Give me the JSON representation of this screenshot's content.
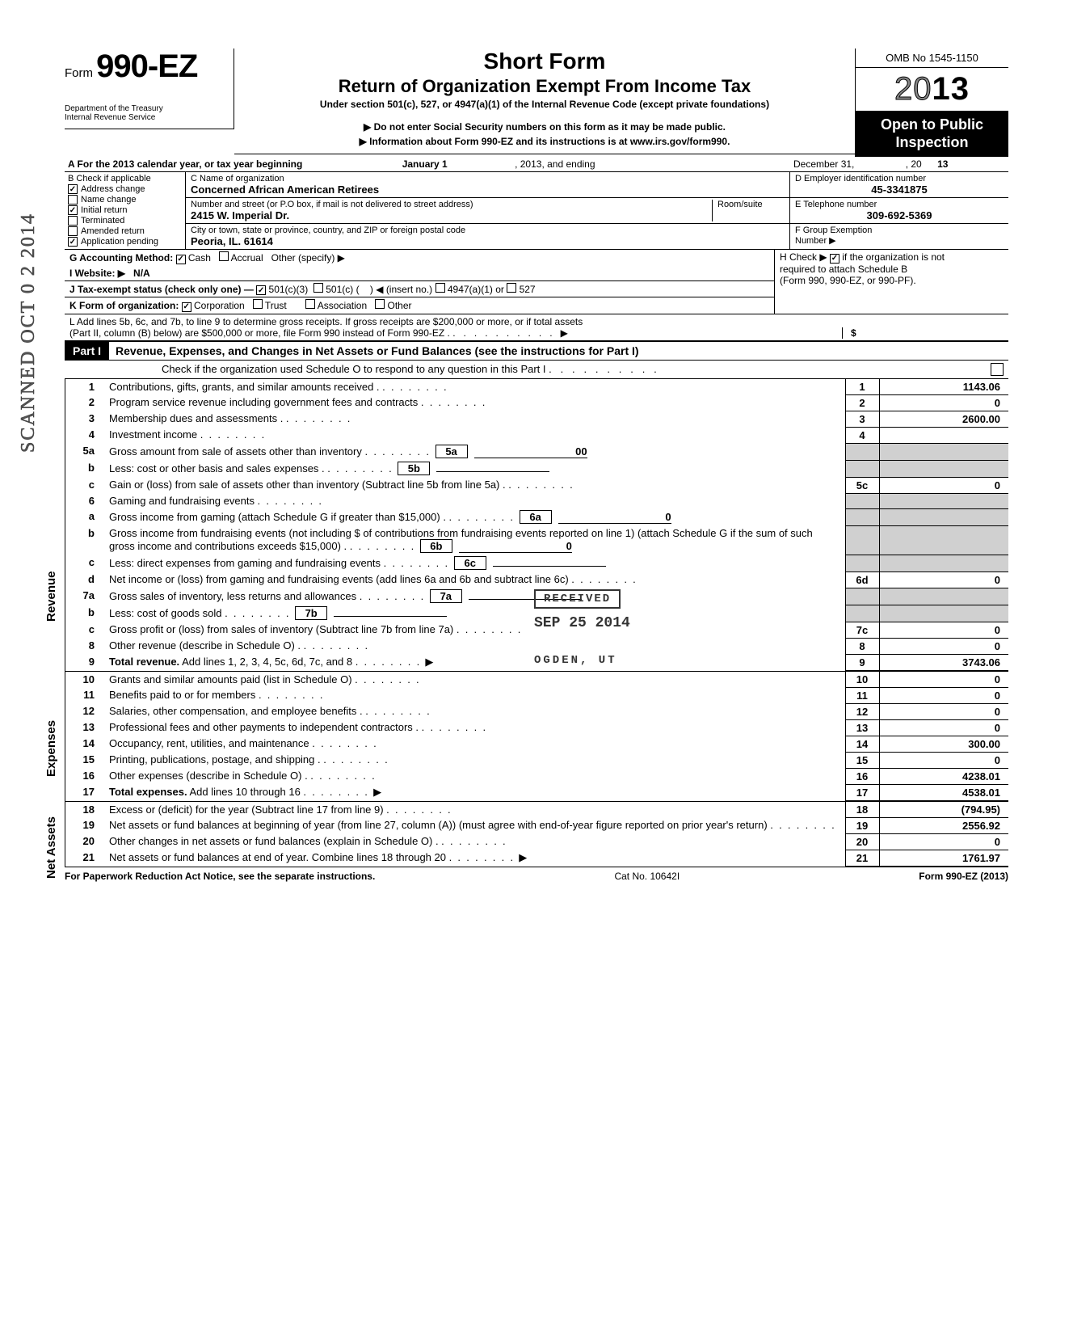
{
  "header": {
    "form_prefix": "Form",
    "form_number": "990-EZ",
    "dept1": "Department of the Treasury",
    "dept2": "Internal Revenue Service",
    "short_form": "Short Form",
    "title": "Return of Organization Exempt From Income Tax",
    "subtitle": "Under section 501(c), 527, or 4947(a)(1) of the Internal Revenue Code (except private foundations)",
    "arrow1": "▶ Do not enter Social Security numbers on this form as it may be made public.",
    "arrow2": "▶ Information about Form 990-EZ and its instructions is at www.irs.gov/form990.",
    "omb": "OMB No 1545-1150",
    "year_outline": "20",
    "year_bold": "13",
    "open1": "Open to Public",
    "open2": "Inspection"
  },
  "row_a": {
    "text_left": "A For the 2013 calendar year, or tax year beginning",
    "mid1": "January 1",
    "mid2": ", 2013, and ending",
    "right1": "December 31,",
    "right2": ", 20",
    "right3": "13"
  },
  "col_b": {
    "header": "B Check if applicable",
    "items": [
      {
        "label": "Address change",
        "checked": true
      },
      {
        "label": "Name change",
        "checked": false
      },
      {
        "label": "Initial return",
        "checked": true
      },
      {
        "label": "Terminated",
        "checked": false
      },
      {
        "label": "Amended return",
        "checked": false
      },
      {
        "label": "Application pending",
        "checked": true
      }
    ]
  },
  "org": {
    "c_label": "C Name of organization",
    "name": "Concerned African American Retirees",
    "addr_label": "Number and street (or P.O box, if mail is not delivered to street address)",
    "room_label": "Room/suite",
    "addr": "2415 W. Imperial Dr.",
    "city_label": "City or town, state or province, country, and ZIP or foreign postal code",
    "city": "Peoria, IL. 61614",
    "d_label": "D Employer identification number",
    "ein": "45-3341875",
    "e_label": "E Telephone number",
    "phone": "309-692-5369",
    "f_label": "F Group Exemption",
    "f_label2": "Number ▶"
  },
  "lines_ghijkl": {
    "g": "G  Accounting Method:",
    "g_cash": "Cash",
    "g_accrual": "Accrual",
    "g_other": "Other (specify) ▶",
    "i": "I   Website: ▶",
    "i_val": "N/A",
    "j": "J  Tax-exempt status (check only one) —",
    "j1": "501(c)(3)",
    "j2": "501(c) (",
    "j2b": ") ◀ (insert no.)",
    "j3": "4947(a)(1) or",
    "j4": "527",
    "k": "K  Form of organization:",
    "k1": "Corporation",
    "k2": "Trust",
    "k3": "Association",
    "k4": "Other",
    "l1": "L  Add lines 5b, 6c, and 7b, to line 9 to determine gross receipts. If gross receipts are $200,000 or more, or if total assets",
    "l2": "(Part II, column (B) below) are $500,000 or more, file Form 990 instead of Form 990-EZ .",
    "l_arrow": "▶",
    "l_dollar": "$",
    "h1": "H  Check ▶",
    "h2": "if the organization is not",
    "h3": "required to attach Schedule B",
    "h4": "(Form 990, 990-EZ, or 990-PF)."
  },
  "part1": {
    "label": "Part I",
    "title": "Revenue, Expenses, and Changes in Net Assets or Fund Balances (see the instructions for Part I)",
    "check_line": "Check if the organization used Schedule O to respond to any question in this Part I"
  },
  "revenue_rows": [
    {
      "n": "1",
      "t": "Contributions, gifts, grants, and similar amounts received .",
      "box": "1",
      "v": "1143.06"
    },
    {
      "n": "2",
      "t": "Program service revenue including government fees and contracts",
      "box": "2",
      "v": "0"
    },
    {
      "n": "3",
      "t": "Membership dues and assessments .",
      "box": "3",
      "v": "2600.00"
    },
    {
      "n": "4",
      "t": "Investment income",
      "box": "4",
      "v": ""
    },
    {
      "n": "5a",
      "t": "Gross amount from sale of assets other than inventory",
      "ibox": "5a",
      "iv": "00"
    },
    {
      "n": "b",
      "t": "Less: cost or other basis and sales expenses .",
      "ibox": "5b",
      "iv": ""
    },
    {
      "n": "c",
      "t": "Gain or (loss) from sale of assets other than inventory (Subtract line 5b from line 5a)  .",
      "box": "5c",
      "v": "0"
    },
    {
      "n": "6",
      "t": "Gaming and fundraising events"
    },
    {
      "n": "a",
      "t": "Gross income from gaming (attach Schedule G if greater than $15,000) .",
      "ibox": "6a",
      "iv": "0"
    },
    {
      "n": "b",
      "t": "Gross income from fundraising events (not including  $                        of contributions from fundraising events reported on line 1) (attach Schedule G if the sum of such gross income and contributions exceeds $15,000) .",
      "ibox": "6b",
      "iv": "0"
    },
    {
      "n": "c",
      "t": "Less: direct expenses from gaming and fundraising events",
      "ibox": "6c",
      "iv": ""
    },
    {
      "n": "d",
      "t": "Net income or (loss) from gaming and fundraising events (add lines 6a and 6b and subtract line 6c)",
      "box": "6d",
      "v": "0"
    },
    {
      "n": "7a",
      "t": "Gross sales of inventory, less returns and allowances",
      "ibox": "7a",
      "iv": ""
    },
    {
      "n": "b",
      "t": "Less: cost of goods sold",
      "ibox": "7b",
      "iv": ""
    },
    {
      "n": "c",
      "t": "Gross profit or (loss) from sales of inventory (Subtract line 7b from line 7a)",
      "box": "7c",
      "v": "0"
    },
    {
      "n": "8",
      "t": "Other revenue (describe in Schedule O) .",
      "box": "8",
      "v": "0"
    },
    {
      "n": "9",
      "t": "Total revenue. Add lines 1, 2, 3, 4, 5c, 6d, 7c, and 8",
      "box": "9",
      "v": "3743.06",
      "arrow": true,
      "bold": true
    }
  ],
  "expense_rows": [
    {
      "n": "10",
      "t": "Grants and similar amounts paid (list in Schedule O)",
      "box": "10",
      "v": "0"
    },
    {
      "n": "11",
      "t": "Benefits paid to or for members",
      "box": "11",
      "v": "0"
    },
    {
      "n": "12",
      "t": "Salaries, other compensation, and employee benefits .",
      "box": "12",
      "v": "0"
    },
    {
      "n": "13",
      "t": "Professional fees and other payments to independent contractors .",
      "box": "13",
      "v": "0"
    },
    {
      "n": "14",
      "t": "Occupancy, rent, utilities, and maintenance",
      "box": "14",
      "v": "300.00"
    },
    {
      "n": "15",
      "t": "Printing, publications, postage, and shipping .",
      "box": "15",
      "v": "0"
    },
    {
      "n": "16",
      "t": "Other expenses (describe in Schedule O)  .",
      "box": "16",
      "v": "4238.01"
    },
    {
      "n": "17",
      "t": "Total expenses. Add lines 10 through 16",
      "box": "17",
      "v": "4538.01",
      "arrow": true,
      "bold": true
    }
  ],
  "netassets_rows": [
    {
      "n": "18",
      "t": "Excess or (deficit) for the year (Subtract line 17 from line 9)",
      "box": "18",
      "v": "(794.95)"
    },
    {
      "n": "19",
      "t": "Net assets or fund balances at beginning of year (from line 27, column (A)) (must agree with end-of-year figure reported on prior year's return)",
      "box": "19",
      "v": "2556.92"
    },
    {
      "n": "20",
      "t": "Other changes in net assets or fund balances (explain in Schedule O) .",
      "box": "20",
      "v": "0"
    },
    {
      "n": "21",
      "t": "Net assets or fund balances at end of year. Combine lines 18 through 20",
      "box": "21",
      "v": "1761.97",
      "arrow": true
    }
  ],
  "side_labels": {
    "rev": "Revenue",
    "exp": "Expenses",
    "na": "Net Assets"
  },
  "stamp": {
    "received": "RECEIVED",
    "date": "SEP 25 2014",
    "ogden": "OGDEN, UT"
  },
  "scanned": "SCANNED OCT 0 2 2014",
  "footer": {
    "left": "For Paperwork Reduction Act Notice, see the separate instructions.",
    "mid": "Cat No. 10642I",
    "right": "Form 990-EZ (2013)"
  }
}
